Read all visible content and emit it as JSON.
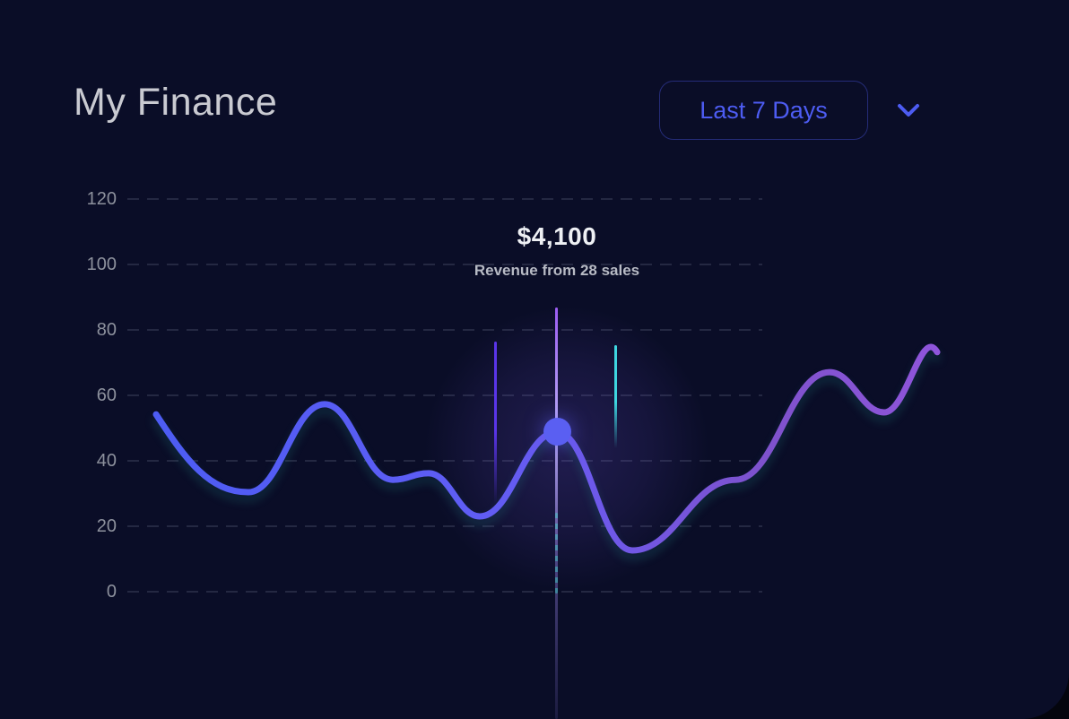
{
  "header": {
    "title": "My Finance",
    "range_selector": {
      "label": "Last 7 Days",
      "chevron_icon": "chevron-down"
    }
  },
  "tooltip": {
    "value": "$4,100",
    "label": "Revenue from 28 sales"
  },
  "chart_data": {
    "type": "line",
    "title": "My Finance",
    "period": "Last 7 Days",
    "xlabel": "",
    "ylabel": "",
    "ylim": [
      0,
      120
    ],
    "y_ticks": [
      120,
      100,
      80,
      60,
      40,
      20,
      0
    ],
    "grid": "dashed horizontal lines",
    "legend": "none",
    "series": [
      {
        "name": "revenue",
        "points": [
          {
            "x": 174,
            "v": 54.2
          },
          {
            "x": 277,
            "v": 30.4
          },
          {
            "x": 362,
            "v": 57.3
          },
          {
            "x": 438,
            "v": 34.2
          },
          {
            "x": 478,
            "v": 36.2
          },
          {
            "x": 535,
            "v": 23.0
          },
          {
            "x": 621,
            "v": 48.8
          },
          {
            "x": 705,
            "v": 12.6
          },
          {
            "x": 820,
            "v": 34.2
          },
          {
            "x": 925,
            "v": 67.1
          },
          {
            "x": 986,
            "v": 54.8
          },
          {
            "x": 1045,
            "v": 73.2
          }
        ]
      }
    ],
    "highlight": {
      "x": 621,
      "v": 48.8,
      "value_usd": "$4,100",
      "sales": 28
    },
    "markers": [
      {
        "name": "marker-line-left",
        "x": 552,
        "y_top": 381,
        "y_bottom": 562,
        "style": "fade",
        "color": "#5a35ea"
      },
      {
        "name": "cursor-line",
        "x": 620,
        "y_top": 343,
        "y_bottom": 802,
        "style": "cursor",
        "color": "#9b5cf2",
        "color_mid": "#b6a7f3"
      },
      {
        "name": "cursor-dash-teal",
        "x": 620,
        "y_top": 572,
        "y_bottom": 662,
        "style": "dashed",
        "color": "rgba(64,220,205,0.45)"
      },
      {
        "name": "marker-line-right",
        "x": 686,
        "y_top": 385,
        "y_bottom": 500,
        "style": "fade",
        "color": "#3ed6e0"
      }
    ],
    "colors": {
      "line_start": "#4d5cf3",
      "line_mid1": "#5f5df5",
      "line_mid2": "#6f58e8",
      "line_mid3": "#7e52cc",
      "line_end": "#8f55db",
      "dot": "#5a5ff2",
      "accent_blue": "#4d5cf2",
      "background": "#0a0d27"
    }
  }
}
